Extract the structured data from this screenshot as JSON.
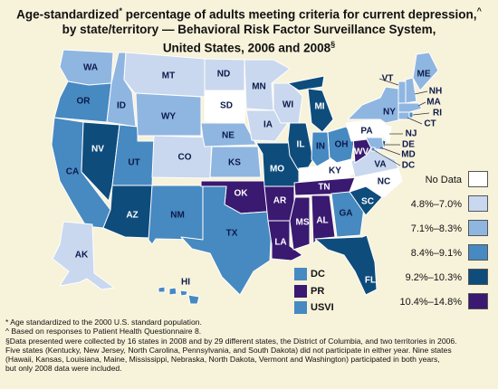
{
  "title": {
    "line1": "Age-standardized",
    "line1_mark": "*",
    "line1_rest": " percentage of adults meeting criteria for current depression,",
    "line1_mark2": "^",
    "line2": "by state/territory — Behavioral Risk Factor Surveillance System,",
    "line3": "United States, 2006 and 2008",
    "line3_mark": "§"
  },
  "colors": {
    "background": "#f7f2da",
    "no_data": "#ffffff",
    "c1": "#c9d8ee",
    "c2": "#8fb6e0",
    "c3": "#4789c1",
    "c4": "#0e4c7c",
    "c5": "#3a1970"
  },
  "legend": [
    {
      "label": "No Data",
      "color": "#ffffff"
    },
    {
      "label": "4.8%–7.0%",
      "color": "#c9d8ee"
    },
    {
      "label": "7.1%–8.3%",
      "color": "#8fb6e0"
    },
    {
      "label": "8.4%–9.1%",
      "color": "#4789c1"
    },
    {
      "label": "9.2%–10.3%",
      "color": "#0e4c7c"
    },
    {
      "label": "10.4%–14.8%",
      "color": "#3a1970"
    }
  ],
  "territories": [
    {
      "label": "DC",
      "color": "#4789c1"
    },
    {
      "label": "PR",
      "color": "#3a1970"
    },
    {
      "label": "USVI",
      "color": "#4789c1"
    }
  ],
  "states": {
    "WA": {
      "label": "WA",
      "category": "c2"
    },
    "OR": {
      "label": "OR",
      "category": "c3"
    },
    "CA": {
      "label": "CA",
      "category": "c3"
    },
    "ID": {
      "label": "ID",
      "category": "c2"
    },
    "NV": {
      "label": "NV",
      "category": "c4"
    },
    "UT": {
      "label": "UT",
      "category": "c3"
    },
    "AZ": {
      "label": "AZ",
      "category": "c4"
    },
    "MT": {
      "label": "MT",
      "category": "c1"
    },
    "WY": {
      "label": "WY",
      "category": "c2"
    },
    "CO": {
      "label": "CO",
      "category": "c1"
    },
    "NM": {
      "label": "NM",
      "category": "c3"
    },
    "ND": {
      "label": "ND",
      "category": "c1"
    },
    "SD": {
      "label": "SD",
      "category": "none"
    },
    "NE": {
      "label": "NE",
      "category": "c2"
    },
    "KS": {
      "label": "KS",
      "category": "c2"
    },
    "OK": {
      "label": "OK",
      "category": "c5"
    },
    "TX": {
      "label": "TX",
      "category": "c3"
    },
    "MN": {
      "label": "MN",
      "category": "c1"
    },
    "IA": {
      "label": "IA",
      "category": "c1"
    },
    "MO": {
      "label": "MO",
      "category": "c4"
    },
    "AR": {
      "label": "AR",
      "category": "c5"
    },
    "LA": {
      "label": "LA",
      "category": "c5"
    },
    "WI": {
      "label": "WI",
      "category": "c1"
    },
    "IL": {
      "label": "IL",
      "category": "c4"
    },
    "MI": {
      "label": "MI",
      "category": "c4"
    },
    "IN": {
      "label": "IN",
      "category": "c3"
    },
    "OH": {
      "label": "OH",
      "category": "c3"
    },
    "KY": {
      "label": "KY",
      "category": "none"
    },
    "TN": {
      "label": "TN",
      "category": "c5"
    },
    "MS": {
      "label": "MS",
      "category": "c5"
    },
    "AL": {
      "label": "AL",
      "category": "c5"
    },
    "GA": {
      "label": "GA",
      "category": "c3"
    },
    "FL": {
      "label": "FL",
      "category": "c4"
    },
    "SC": {
      "label": "SC",
      "category": "c4"
    },
    "NC": {
      "label": "NC",
      "category": "none"
    },
    "VA": {
      "label": "VA",
      "category": "c1"
    },
    "WV": {
      "label": "WV",
      "category": "c5"
    },
    "PA": {
      "label": "PA",
      "category": "none"
    },
    "NY": {
      "label": "NY",
      "category": "c2"
    },
    "NJ": {
      "label": "NJ",
      "category": "none"
    },
    "DE": {
      "label": "DE",
      "category": "c4"
    },
    "MD": {
      "label": "MD",
      "category": "c2"
    },
    "DC": {
      "label": "DC",
      "category": "c3"
    },
    "CT": {
      "label": "CT",
      "category": "c2"
    },
    "RI": {
      "label": "RI",
      "category": "c3"
    },
    "MA": {
      "label": "MA",
      "category": "c2"
    },
    "VT": {
      "label": "VT",
      "category": "c2"
    },
    "NH": {
      "label": "NH",
      "category": "c2"
    },
    "ME": {
      "label": "ME",
      "category": "c2"
    },
    "AK": {
      "label": "AK",
      "category": "c1"
    },
    "HI": {
      "label": "HI",
      "category": "c3"
    }
  },
  "footnotes": [
    "* Age standardized to the 2000 U.S. standard population.",
    "^ Based on responses to Patient Health Questionnaire 8.",
    "§Data presented were collected by 16 states in 2008 and by 29 different states, the District of Columbia, and two territories in 2006.",
    "  Five states (Kentucky, New Jersey, North Carolina, Pennsylvania, and South Dakota) did not participate in either year. Nine states",
    "  (Hawaii, Kansas, Louisiana, Maine, Mississippi, Nebraska, North Dakota, Vermont and Washington) participated in both years,",
    "  but only 2008 data were included."
  ]
}
